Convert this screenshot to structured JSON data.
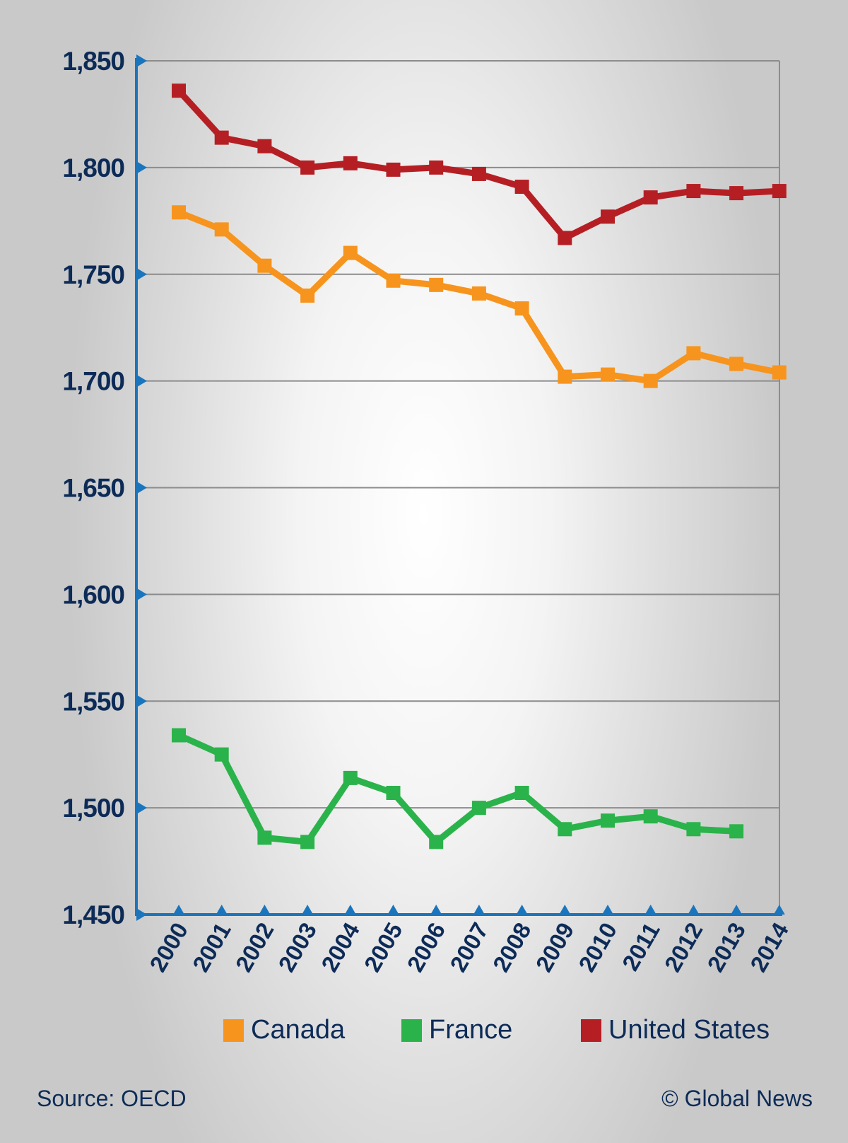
{
  "chart_data": {
    "type": "line",
    "title": "",
    "xlabel": "",
    "ylabel": "",
    "x": [
      "2000",
      "2001",
      "2002",
      "2003",
      "2004",
      "2005",
      "2006",
      "2007",
      "2008",
      "2009",
      "2010",
      "2011",
      "2012",
      "2013",
      "2014"
    ],
    "ylim": [
      1450,
      1850
    ],
    "yticks": [
      "1,450",
      "1,500",
      "1,550",
      "1,600",
      "1,650",
      "1,700",
      "1,750",
      "1,800",
      "1,850"
    ],
    "grid": true,
    "legend_position": "bottom",
    "series": [
      {
        "name": "Canada",
        "color": "#f7941d",
        "values": [
          1779,
          1771,
          1754,
          1740,
          1760,
          1747,
          1745,
          1741,
          1734,
          1702,
          1703,
          1700,
          1713,
          1708,
          1704
        ]
      },
      {
        "name": "France",
        "color": "#2ab34a",
        "values": [
          1534,
          1525,
          1486,
          1484,
          1514,
          1507,
          1484,
          1500,
          1507,
          1490,
          1494,
          1496,
          1490,
          1489,
          null
        ]
      },
      {
        "name": "United States",
        "color": "#b51f24",
        "values": [
          1836,
          1814,
          1810,
          1800,
          1802,
          1799,
          1800,
          1797,
          1791,
          1767,
          1777,
          1786,
          1789,
          1788,
          1789
        ]
      }
    ]
  },
  "legend": {
    "items": [
      {
        "label": "Canada",
        "color": "#f7941d"
      },
      {
        "label": "France",
        "color": "#2ab34a"
      },
      {
        "label": "United States",
        "color": "#b51f24"
      }
    ]
  },
  "footer": {
    "source": "Source: OECD",
    "credit": "© Global News"
  },
  "colors": {
    "axis": "#1b75bc",
    "text": "#0d2b57",
    "grid": "#8c8c8c"
  }
}
